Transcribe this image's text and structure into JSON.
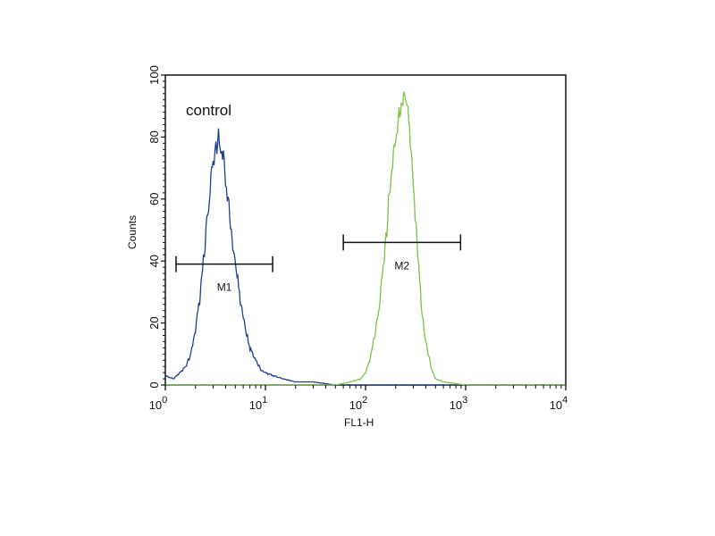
{
  "chart_data": {
    "type": "line",
    "subtype": "flow-cytometry-histogram",
    "annotation": "control",
    "xlabel": "FL1-H",
    "ylabel": "Counts",
    "xscale": "log",
    "xlim": [
      1,
      10000
    ],
    "ylim": [
      0,
      100
    ],
    "x_ticks": [
      {
        "value": 1,
        "base": "10",
        "exp": "0"
      },
      {
        "value": 10,
        "base": "10",
        "exp": "1"
      },
      {
        "value": 100,
        "base": "10",
        "exp": "2"
      },
      {
        "value": 1000,
        "base": "10",
        "exp": "3"
      },
      {
        "value": 10000,
        "base": "10",
        "exp": "4"
      }
    ],
    "y_ticks": [
      "0",
      "20",
      "40",
      "60",
      "80",
      "100"
    ],
    "grid": false,
    "series": [
      {
        "color": "#1f3f8f",
        "x": [
          1.0,
          1.2,
          1.4,
          1.6,
          1.8,
          2.0,
          2.2,
          2.4,
          2.6,
          2.8,
          3.0,
          3.2,
          3.4,
          3.6,
          3.8,
          4.0,
          4.4,
          4.8,
          5.2,
          5.6,
          6.0,
          6.5,
          7.0,
          8.0,
          9.0,
          10,
          12,
          15,
          20,
          30,
          50,
          100,
          10000
        ],
        "y": [
          3,
          2,
          4,
          6,
          10,
          18,
          28,
          40,
          52,
          63,
          72,
          78,
          79,
          76,
          72,
          66,
          55,
          44,
          35,
          28,
          22,
          16,
          12,
          8,
          5,
          4,
          3,
          2,
          1,
          1,
          0,
          0,
          0
        ]
      },
      {
        "color": "#7cc24a",
        "x": [
          1,
          50,
          70,
          90,
          100,
          110,
          120,
          130,
          140,
          150,
          160,
          170,
          180,
          190,
          200,
          220,
          240,
          260,
          280,
          300,
          320,
          340,
          360,
          400,
          450,
          500,
          600,
          1000,
          10000
        ],
        "y": [
          0,
          0,
          1,
          2,
          4,
          8,
          14,
          20,
          28,
          38,
          48,
          58,
          68,
          72,
          80,
          88,
          95,
          90,
          80,
          66,
          52,
          38,
          26,
          14,
          6,
          2,
          1,
          0,
          0
        ]
      }
    ],
    "markers": [
      {
        "label": "M1",
        "x_start": 1.28,
        "x_end": 11.8,
        "y": 39
      },
      {
        "label": "M2",
        "x_start": 60,
        "x_end": 890,
        "y": 46
      }
    ]
  }
}
